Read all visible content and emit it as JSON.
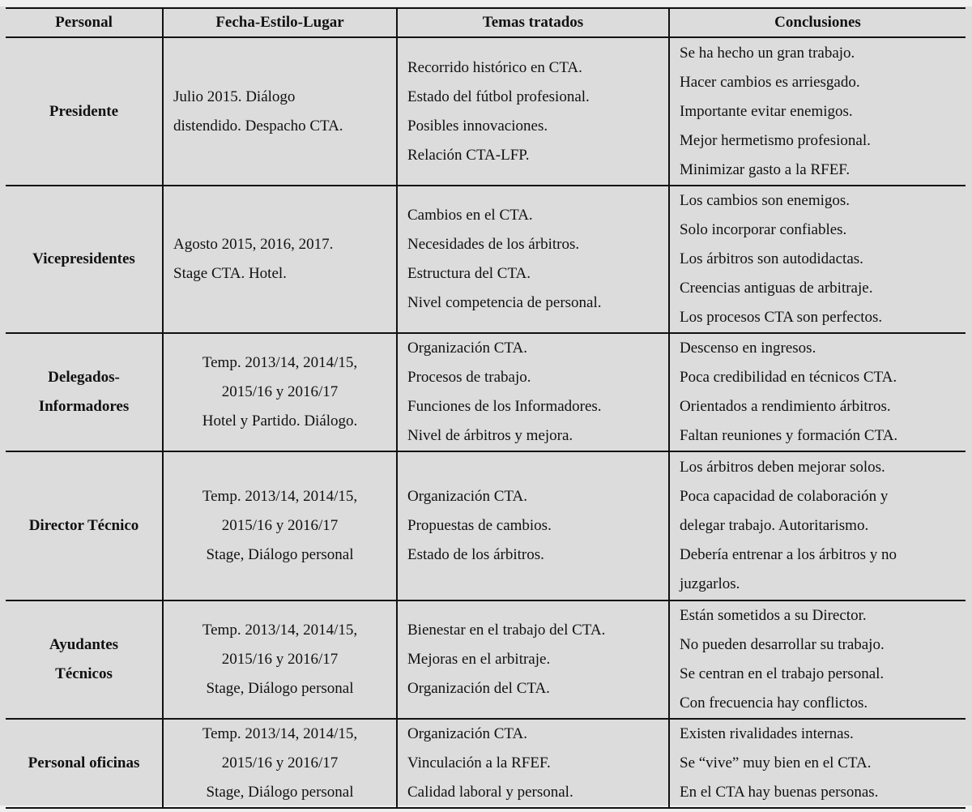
{
  "headers": [
    "Personal",
    "Fecha-Estilo-Lugar",
    "Temas tratados",
    "Conclusiones"
  ],
  "rows": [
    {
      "personal": [
        "Presidente"
      ],
      "fecha": [
        "Julio 2015. Diálogo",
        "distendido. Despacho CTA."
      ],
      "temas": [
        "Recorrido histórico en CTA.",
        "Estado del fútbol profesional.",
        "Posibles innovaciones.",
        "Relación CTA-LFP."
      ],
      "conclusiones": [
        "Se ha hecho un gran trabajo.",
        "Hacer cambios es arriesgado.",
        "Importante evitar enemigos.",
        "Mejor hermetismo profesional.",
        "Minimizar gasto a la RFEF."
      ]
    },
    {
      "personal": [
        "Vicepresidentes"
      ],
      "fecha": [
        "Agosto 2015, 2016, 2017.",
        "Stage CTA. Hotel."
      ],
      "temas": [
        "Cambios en el CTA.",
        "Necesidades de los árbitros.",
        "Estructura del CTA.",
        "Nivel competencia de personal."
      ],
      "conclusiones": [
        "Los cambios son enemigos.",
        "Solo incorporar confiables.",
        "Los árbitros son autodidactas.",
        "Creencias antiguas de arbitraje.",
        "Los procesos CTA son perfectos."
      ]
    },
    {
      "personal": [
        "Delegados-",
        "Informadores"
      ],
      "fecha": [
        "Temp. 2013/14, 2014/15,",
        "2015/16 y 2016/17",
        "Hotel y Partido. Diálogo."
      ],
      "temas": [
        "Organización CTA.",
        "Procesos de trabajo.",
        "Funciones de los Informadores.",
        "Nivel de árbitros y mejora."
      ],
      "conclusiones": [
        "Descenso en ingresos.",
        "Poca credibilidad en técnicos CTA.",
        "Orientados a rendimiento árbitros.",
        "Faltan reuniones y formación CTA."
      ]
    },
    {
      "personal": [
        "Director Técnico"
      ],
      "fecha": [
        "Temp. 2013/14, 2014/15,",
        "2015/16 y 2016/17",
        "Stage, Diálogo personal"
      ],
      "temas": [
        "Organización CTA.",
        "Propuestas de cambios.",
        "Estado de los árbitros."
      ],
      "conclusiones": [
        "Los árbitros deben mejorar solos.",
        "Poca capacidad de colaboración y",
        "delegar trabajo. Autoritarismo.",
        "Debería entrenar a los árbitros y no",
        "juzgarlos."
      ]
    },
    {
      "personal": [
        "Ayudantes",
        "Técnicos"
      ],
      "fecha": [
        "Temp. 2013/14, 2014/15,",
        "2015/16 y 2016/17",
        "Stage, Diálogo personal"
      ],
      "temas": [
        "Bienestar en el trabajo del CTA.",
        "Mejoras en el arbitraje.",
        "Organización del CTA."
      ],
      "conclusiones": [
        "Están sometidos a su Director.",
        "No pueden desarrollar su trabajo.",
        "Se centran en el trabajo personal.",
        "Con frecuencia hay conflictos."
      ]
    },
    {
      "personal": [
        "Personal oficinas"
      ],
      "fecha": [
        "Temp. 2013/14, 2014/15,",
        "2015/16 y 2016/17",
        "Stage, Diálogo personal"
      ],
      "temas": [
        "Organización CTA.",
        "Vinculación a la RFEF.",
        "Calidad laboral y personal."
      ],
      "conclusiones": [
        "Existen rivalidades internas.",
        "Se “vive” muy bien en el CTA.",
        "En el CTA hay buenas personas."
      ]
    }
  ]
}
